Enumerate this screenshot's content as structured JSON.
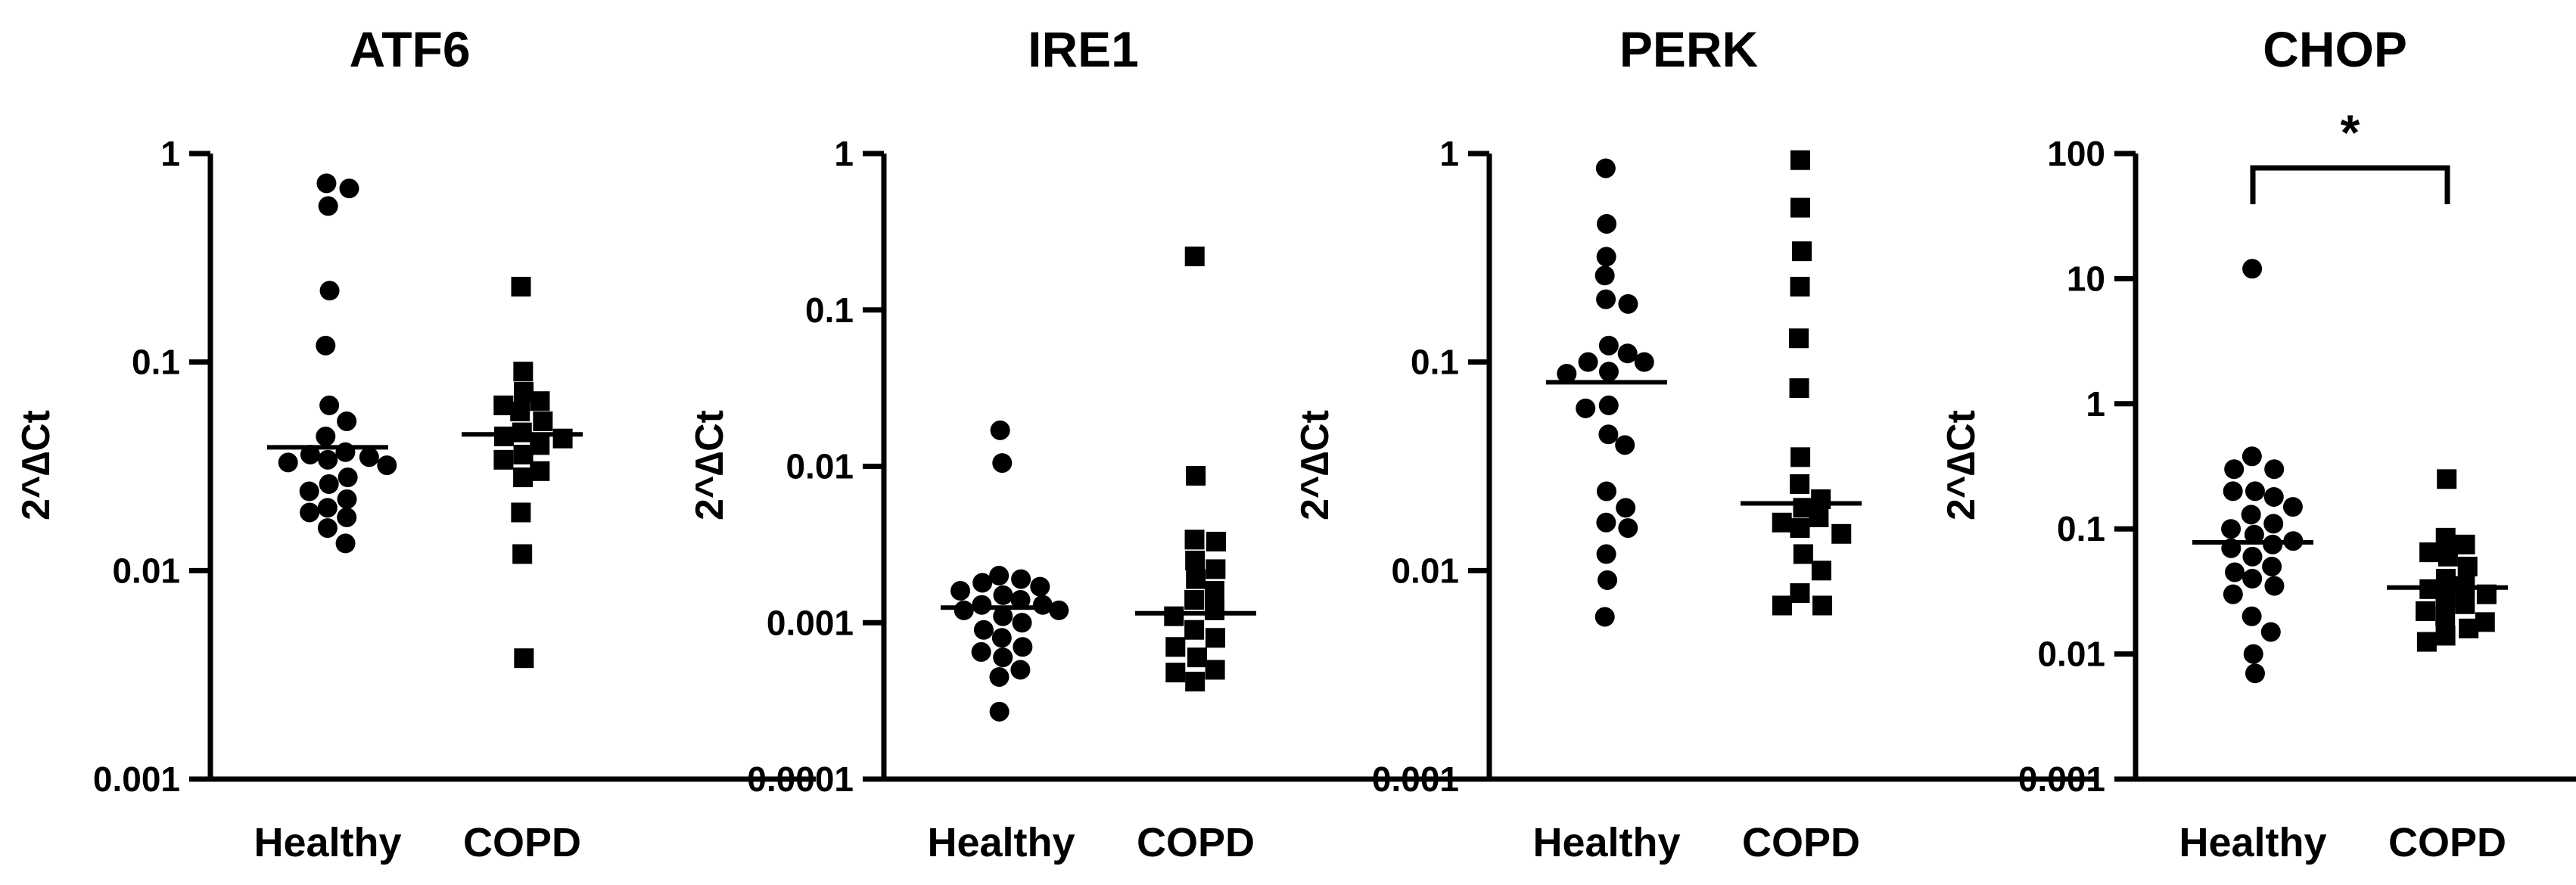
{
  "chart_data": [
    {
      "type": "scatter",
      "title": "ATF6",
      "ylabel": "2^∆Ct",
      "yscale": "log",
      "ylim": [
        0.001,
        1
      ],
      "yticks": [
        "1",
        "0.1",
        "0.01",
        "0.001"
      ],
      "categories": [
        "Healthy",
        "COPD"
      ],
      "series": [
        {
          "name": "Healthy",
          "marker": "circle",
          "median": 0.039,
          "values": [
            0.72,
            0.68,
            0.56,
            0.22,
            0.12,
            0.062,
            0.052,
            0.044,
            0.037,
            0.036,
            0.035,
            0.034,
            0.033,
            0.032,
            0.028,
            0.026,
            0.024,
            0.022,
            0.02,
            0.019,
            0.018,
            0.016,
            0.0135
          ]
        },
        {
          "name": "COPD",
          "marker": "square",
          "median": 0.045,
          "values": [
            0.23,
            0.09,
            0.072,
            0.065,
            0.062,
            0.058,
            0.052,
            0.046,
            0.044,
            0.043,
            0.04,
            0.036,
            0.034,
            0.03,
            0.028,
            0.019,
            0.012,
            0.0038
          ]
        }
      ],
      "significance": null
    },
    {
      "type": "scatter",
      "title": "IRE1",
      "ylabel": "2^∆Ct",
      "yscale": "log",
      "ylim": [
        0.0001,
        1
      ],
      "yticks": [
        "1",
        "0.1",
        "0.01",
        "0.001",
        "0.0001"
      ],
      "categories": [
        "Healthy",
        "COPD"
      ],
      "series": [
        {
          "name": "Healthy",
          "marker": "circle",
          "median": 0.00125,
          "values": [
            0.017,
            0.0105,
            0.002,
            0.0019,
            0.0018,
            0.0017,
            0.0016,
            0.0015,
            0.0014,
            0.0013,
            0.0013,
            0.0012,
            0.0012,
            0.0011,
            0.001,
            0.0009,
            0.0008,
            0.0007,
            0.00065,
            0.0006,
            0.0005,
            0.00045,
            0.00027
          ]
        },
        {
          "name": "COPD",
          "marker": "square",
          "median": 0.00115,
          "values": [
            0.22,
            0.0087,
            0.0034,
            0.0033,
            0.0025,
            0.0022,
            0.0019,
            0.0016,
            0.0014,
            0.0012,
            0.0011,
            0.0009,
            0.0008,
            0.0007,
            0.0006,
            0.0005,
            0.00048,
            0.00042
          ]
        }
      ],
      "significance": null
    },
    {
      "type": "scatter",
      "title": "PERK",
      "ylabel": "2^∆Ct",
      "yscale": "log",
      "ylim": [
        0.001,
        1
      ],
      "yticks": [
        "1",
        "0.1",
        "0.01",
        "0.001"
      ],
      "categories": [
        "Healthy",
        "COPD"
      ],
      "series": [
        {
          "name": "Healthy",
          "marker": "circle",
          "median": 0.08,
          "values": [
            0.85,
            0.46,
            0.32,
            0.26,
            0.2,
            0.19,
            0.12,
            0.11,
            0.1,
            0.1,
            0.09,
            0.088,
            0.062,
            0.06,
            0.045,
            0.04,
            0.024,
            0.02,
            0.017,
            0.016,
            0.012,
            0.009,
            0.006
          ]
        },
        {
          "name": "COPD",
          "marker": "square",
          "median": 0.021,
          "values": [
            0.93,
            0.55,
            0.34,
            0.23,
            0.13,
            0.075,
            0.035,
            0.026,
            0.022,
            0.02,
            0.018,
            0.017,
            0.016,
            0.015,
            0.012,
            0.01,
            0.0078,
            0.0068,
            0.0068
          ]
        }
      ],
      "significance": null
    },
    {
      "type": "scatter",
      "title": "CHOP",
      "ylabel": "2^∆Ct",
      "yscale": "log",
      "ylim": [
        0.001,
        100
      ],
      "yticks": [
        "100",
        "10",
        "1",
        "0.1",
        "0.01",
        "0.001"
      ],
      "categories": [
        "Healthy",
        "COPD"
      ],
      "series": [
        {
          "name": "Healthy",
          "marker": "circle",
          "median": 0.078,
          "values": [
            12,
            0.38,
            0.3,
            0.3,
            0.2,
            0.2,
            0.18,
            0.15,
            0.13,
            0.11,
            0.1,
            0.09,
            0.08,
            0.075,
            0.07,
            0.06,
            0.05,
            0.045,
            0.04,
            0.035,
            0.03,
            0.02,
            0.015,
            0.01,
            0.007
          ]
        },
        {
          "name": "COPD",
          "marker": "square",
          "median": 0.034,
          "values": [
            0.25,
            0.085,
            0.075,
            0.065,
            0.06,
            0.05,
            0.04,
            0.035,
            0.033,
            0.03,
            0.028,
            0.025,
            0.022,
            0.02,
            0.018,
            0.016,
            0.014,
            0.0125
          ]
        }
      ],
      "significance": {
        "label": "*",
        "between": [
          "Healthy",
          "COPD"
        ]
      }
    }
  ]
}
